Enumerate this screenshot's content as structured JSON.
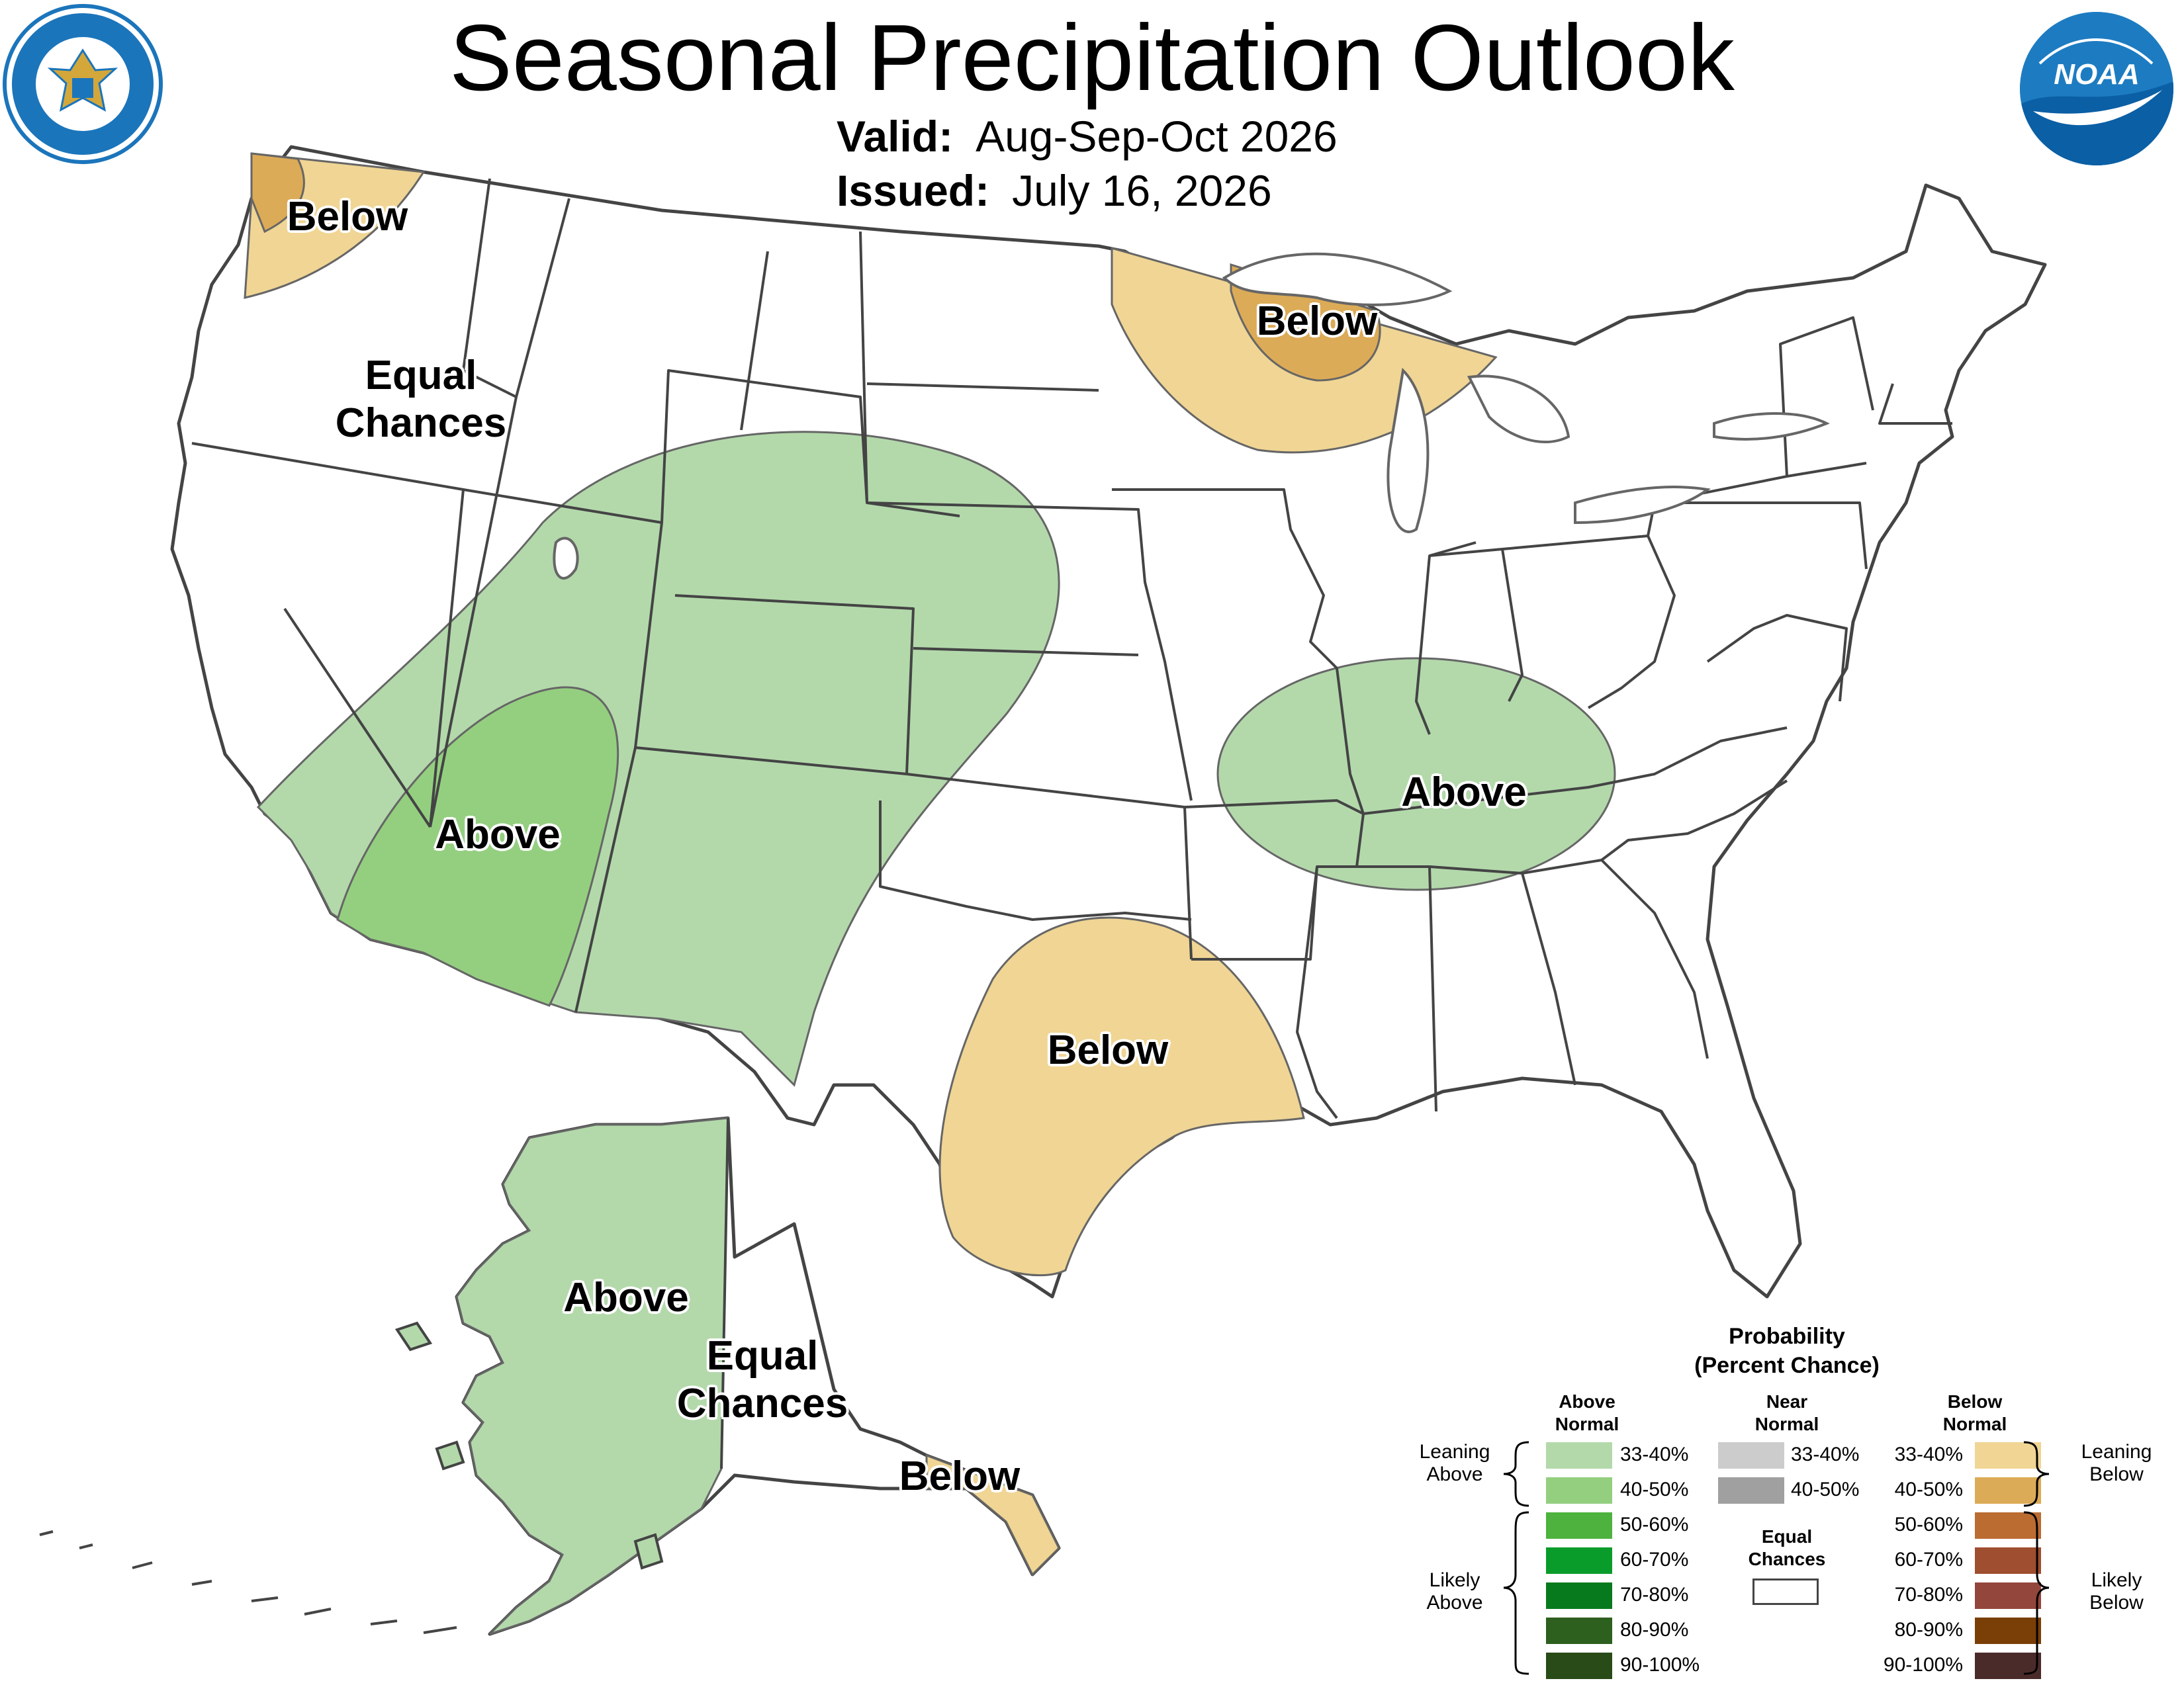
{
  "title": "Seasonal Precipitation Outlook",
  "valid": {
    "label": "Valid:",
    "value": "Aug-Sep-Oct 2026"
  },
  "issued": {
    "label": "Issued:",
    "value": "July 16, 2026"
  },
  "logos": {
    "left": "department-of-commerce-seal",
    "right": "noaa-logo",
    "noaa_text": "NOAA"
  },
  "region_labels": {
    "pnw": "Below",
    "west_ec": [
      "Equal",
      "Chances"
    ],
    "great_lakes": "Below",
    "southwest": "Above",
    "ohio_valley": "Above",
    "texas": "Below",
    "alaska_west": "Above",
    "alaska_ec": [
      "Equal",
      "Chances"
    ],
    "alaska_se": "Below"
  },
  "legend": {
    "title": [
      "Probability",
      "(Percent Chance)"
    ],
    "above_header": [
      "Above",
      "Normal"
    ],
    "near_header": [
      "Near",
      "Normal"
    ],
    "below_header": [
      "Below",
      "Normal"
    ],
    "leaning_above": [
      "Leaning",
      "Above"
    ],
    "likely_above": [
      "Likely",
      "Above"
    ],
    "leaning_below": [
      "Leaning",
      "Below"
    ],
    "likely_below": [
      "Likely",
      "Below"
    ],
    "equal_chances": [
      "Equal",
      "Chances"
    ],
    "above": [
      {
        "range": "33-40%",
        "color": "#b3d9ab"
      },
      {
        "range": "40-50%",
        "color": "#94cf80"
      },
      {
        "range": "50-60%",
        "color": "#4db23e"
      },
      {
        "range": "60-70%",
        "color": "#0a9c2a"
      },
      {
        "range": "70-80%",
        "color": "#077a1e"
      },
      {
        "range": "80-90%",
        "color": "#2d5f1e"
      },
      {
        "range": "90-100%",
        "color": "#284b17"
      }
    ],
    "near": [
      {
        "range": "33-40%",
        "color": "#cccccc"
      },
      {
        "range": "40-50%",
        "color": "#a0a0a0"
      }
    ],
    "below": [
      {
        "range": "33-40%",
        "color": "#f0d594"
      },
      {
        "range": "40-50%",
        "color": "#dcab57"
      },
      {
        "range": "50-60%",
        "color": "#bb6c31"
      },
      {
        "range": "60-70%",
        "color": "#9f4e2f"
      },
      {
        "range": "70-80%",
        "color": "#93463c"
      },
      {
        "range": "80-90%",
        "color": "#7a3f06"
      },
      {
        "range": "90-100%",
        "color": "#4b2b2a"
      }
    ],
    "equal_color": "#ffffff"
  }
}
